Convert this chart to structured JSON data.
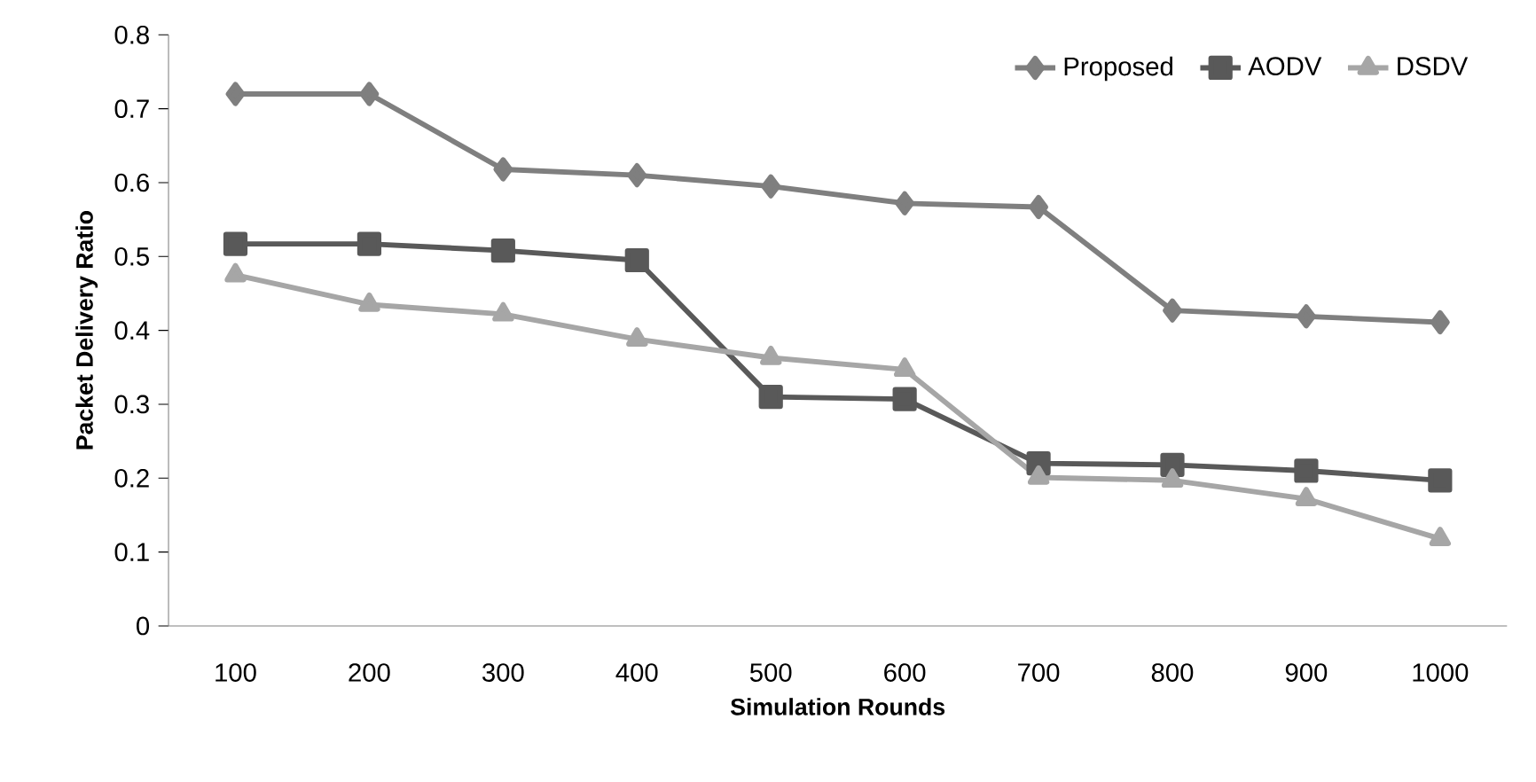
{
  "chart_data": {
    "type": "line",
    "xlabel": "Simulation Rounds",
    "ylabel": "Packet Delivery Ratio",
    "categories": [
      "100",
      "200",
      "300",
      "400",
      "500",
      "600",
      "700",
      "800",
      "900",
      "1000"
    ],
    "series": [
      {
        "name": "Proposed",
        "color": "#7f7f7f",
        "marker": "diamond",
        "values": [
          0.72,
          0.72,
          0.618,
          0.61,
          0.595,
          0.572,
          0.567,
          0.427,
          0.419,
          0.411
        ]
      },
      {
        "name": "AODV",
        "color": "#595959",
        "marker": "square",
        "values": [
          0.517,
          0.517,
          0.508,
          0.495,
          0.31,
          0.307,
          0.22,
          0.218,
          0.21,
          0.197
        ]
      },
      {
        "name": "DSDV",
        "color": "#a6a6a6",
        "marker": "triangle",
        "values": [
          0.475,
          0.435,
          0.422,
          0.388,
          0.363,
          0.347,
          0.201,
          0.197,
          0.172,
          0.118
        ]
      }
    ],
    "ylim": [
      0,
      0.8
    ],
    "yticks": [
      0,
      0.1,
      0.2,
      0.3,
      0.4,
      0.5,
      0.6,
      0.7,
      0.8
    ],
    "grid": false,
    "legend": "top right",
    "line_style": "solid"
  }
}
